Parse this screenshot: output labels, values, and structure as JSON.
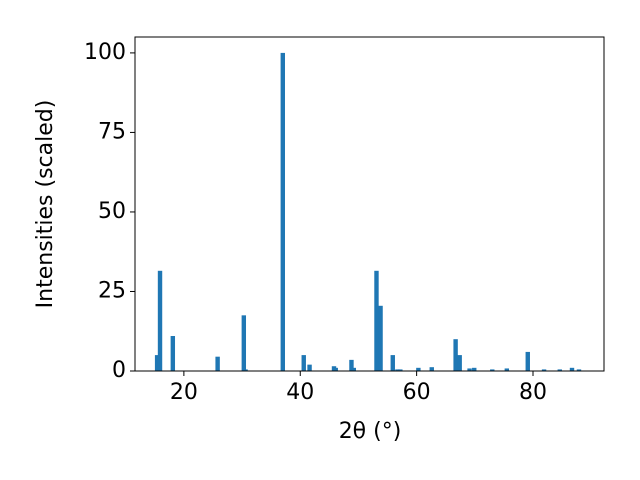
{
  "chart_data": {
    "type": "bar",
    "xlabel": "2θ (°)",
    "ylabel": "Intensities (scaled)",
    "x": [
      15.4,
      15.9,
      18.1,
      25.8,
      30.3,
      30.6,
      37.0,
      40.6,
      41.6,
      45.8,
      46.1,
      48.8,
      49.2,
      53.1,
      53.8,
      55.9,
      56.7,
      57.2,
      60.3,
      62.6,
      66.7,
      67.4,
      69.1,
      69.9,
      73.0,
      75.5,
      79.1,
      81.9,
      84.6,
      86.7,
      87.9
    ],
    "values": [
      5,
      31.5,
      11,
      4.5,
      17.5,
      0.5,
      100,
      5,
      2,
      1.5,
      1,
      3.5,
      1,
      31.5,
      20.5,
      5,
      0.5,
      0.5,
      1,
      1.2,
      10,
      5,
      0.8,
      1,
      0.5,
      0.8,
      6,
      0.5,
      0.5,
      1,
      0.5
    ],
    "color": "#1f77b4",
    "xlim": [
      11.6,
      92.2
    ],
    "xticks": [
      20,
      40,
      60,
      80
    ],
    "ylim": [
      0,
      105
    ],
    "yticks": [
      0,
      25,
      50,
      75,
      100
    ],
    "grid": false
  }
}
